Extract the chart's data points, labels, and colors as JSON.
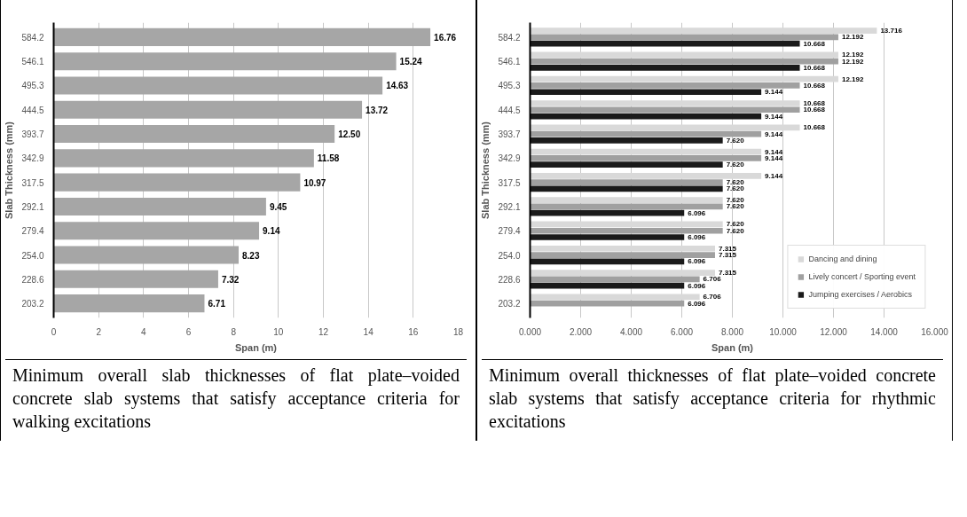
{
  "chart_data": [
    {
      "type": "bar",
      "orientation": "horizontal",
      "xlabel": "Span (m)",
      "ylabel": "Slab Thickness (mm)",
      "categories": [
        "584.2",
        "546.1",
        "495.3",
        "444.5",
        "393.7",
        "342.9",
        "317.5",
        "292.1",
        "279.4",
        "254.0",
        "228.6",
        "203.2"
      ],
      "series": [
        {
          "color": "#a6a6a6",
          "values": [
            16.76,
            15.24,
            14.63,
            13.72,
            12.5,
            11.58,
            10.97,
            9.45,
            9.14,
            8.23,
            7.32,
            6.71
          ],
          "value_labels": [
            "16.76",
            "15.24",
            "14.63",
            "13.72",
            "12.50",
            "11.58",
            "10.97",
            "9.45",
            "9.14",
            "8.23",
            "7.32",
            "6.71"
          ]
        }
      ],
      "xlim": [
        0,
        18
      ],
      "xticks": [
        0,
        2,
        4,
        6,
        8,
        10,
        12,
        14,
        16,
        18
      ],
      "grid": "x",
      "legend": false,
      "annotations": [
        "Minimum overall slab thicknesses of flat plate–voided concrete slab systems that satisfy acceptance criteria for walking excitations"
      ]
    },
    {
      "type": "bar",
      "orientation": "horizontal",
      "xlabel": "Span (m)",
      "ylabel": "Slab Thickness (mm)",
      "categories": [
        "584.2",
        "546.1",
        "495.3",
        "444.5",
        "393.7",
        "342.9",
        "317.5",
        "292.1",
        "279.4",
        "254.0",
        "228.6",
        "203.2"
      ],
      "series": [
        {
          "name": "Dancing and dining",
          "color": "#d9d9d9",
          "values": [
            13.716,
            12.192,
            12.192,
            10.668,
            10.668,
            9.144,
            9.144,
            7.62,
            7.62,
            7.315,
            7.315,
            6.706
          ],
          "value_labels": [
            "13.716",
            "12.192",
            "12.192",
            "10.668",
            "10.668",
            "9.144",
            "9.144",
            "7.620",
            "7.620",
            "7.315",
            "7.315",
            "6.706"
          ]
        },
        {
          "name": "Lively concert / Sporting event",
          "color": "#a0a0a0",
          "values": [
            12.192,
            12.192,
            10.668,
            10.668,
            9.144,
            9.144,
            7.62,
            7.62,
            7.62,
            7.315,
            6.706,
            6.096
          ],
          "value_labels": [
            "12.192",
            "12.192",
            "10.668",
            "10.668",
            "9.144",
            "9.144",
            "7.620",
            "7.620",
            "7.620",
            "7.315",
            "6.706",
            "6.096"
          ]
        },
        {
          "name": "Jumping exercises / Aerobics",
          "color": "#1a1a1a",
          "values": [
            10.668,
            10.668,
            9.144,
            9.144,
            7.62,
            7.62,
            7.62,
            6.096,
            6.096,
            6.096,
            6.096,
            null
          ],
          "value_labels": [
            "10.668",
            "10.668",
            "9.144",
            "9.144",
            "7.620",
            "7.620",
            "7.620",
            "6.096",
            "6.096",
            "6.096",
            "6.096",
            null
          ]
        }
      ],
      "xlim": [
        0,
        16
      ],
      "xticks": [
        {
          "value": 0,
          "label": "0.000"
        },
        {
          "value": 2,
          "label": "2.000"
        },
        {
          "value": 4,
          "label": "4.000"
        },
        {
          "value": 6,
          "label": "6.000"
        },
        {
          "value": 8,
          "label": "8.000"
        },
        {
          "value": 10,
          "label": "10.000"
        },
        {
          "value": 12,
          "label": "12.000"
        },
        {
          "value": 14,
          "label": "14.000"
        },
        {
          "value": 16,
          "label": "16.000"
        }
      ],
      "grid": "x",
      "legend": "bottom right",
      "annotations": [
        "Minimum overall thicknesses of flat plate–voided concrete slab systems that satisfy acceptance criteria for rhythmic excitations"
      ]
    }
  ]
}
